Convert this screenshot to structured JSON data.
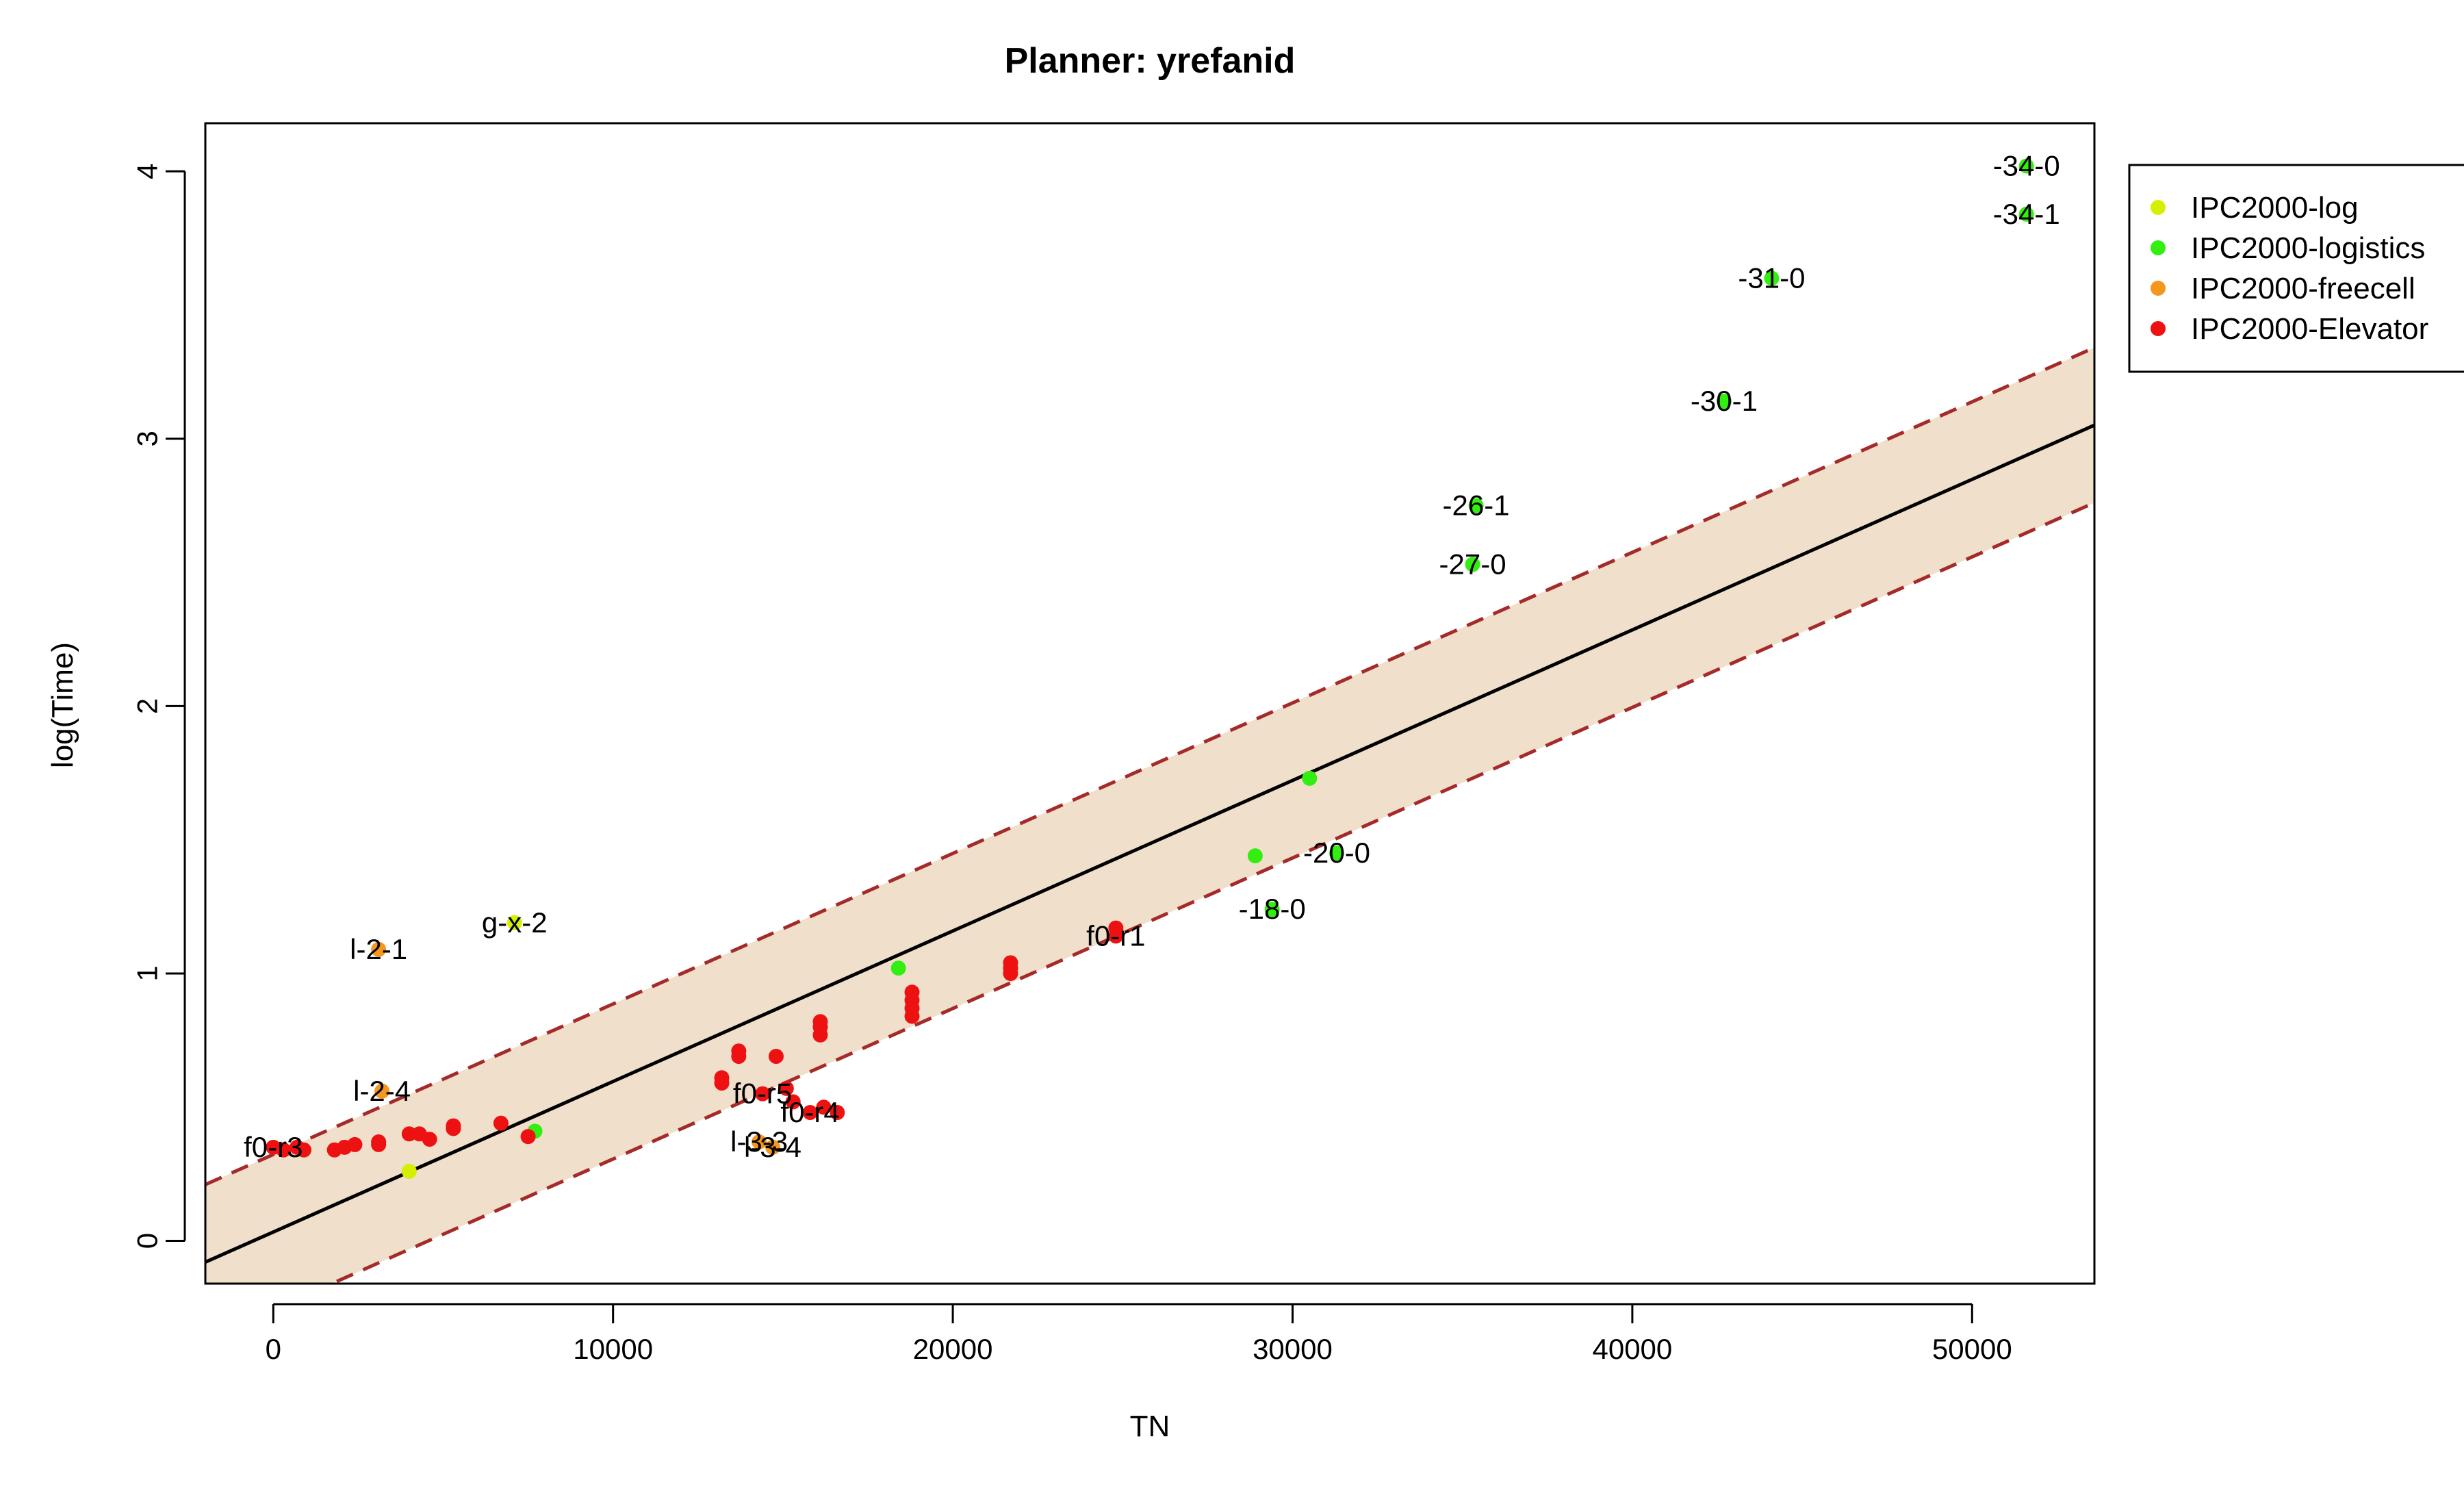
{
  "chart_data": {
    "type": "scatter",
    "title": "Planner: yrefanid",
    "xlabel": "TN",
    "ylabel": "log(Time)",
    "xlim": [
      -2000,
      53600
    ],
    "ylim": [
      -0.16,
      4.18
    ],
    "xticks": [
      0,
      10000,
      20000,
      30000,
      40000,
      50000
    ],
    "yticks": [
      0,
      1,
      2,
      3,
      4
    ],
    "grid": false,
    "legend_position": "top-right-outside",
    "fit": {
      "intercept": 0.033,
      "slope": 5.63e-05,
      "band_offset": 0.29,
      "line_color": "#000000",
      "band_fill": "#f0dfca",
      "band_line_color": "#a52a2a"
    },
    "series": [
      {
        "name": "IPC2000-log",
        "color": "#d4f000",
        "points": [
          {
            "x": 7100,
            "y": 1.19,
            "label": "g-x-2"
          },
          {
            "x": 4000,
            "y": 0.26,
            "label": ""
          }
        ]
      },
      {
        "name": "IPC2000-logistics",
        "color": "#33ee11",
        "points": [
          {
            "x": 51600,
            "y": 4.02,
            "label": "-34-0"
          },
          {
            "x": 51600,
            "y": 3.84,
            "label": "-34-1"
          },
          {
            "x": 44100,
            "y": 3.6,
            "label": "-31-0"
          },
          {
            "x": 42700,
            "y": 3.14,
            "label": "-30-1"
          },
          {
            "x": 35400,
            "y": 2.75,
            "label": "-26-1"
          },
          {
            "x": 35300,
            "y": 2.53,
            "label": "-27-0"
          },
          {
            "x": 30500,
            "y": 1.73,
            "label": ""
          },
          {
            "x": 31300,
            "y": 1.45,
            "label": "-20-0"
          },
          {
            "x": 28900,
            "y": 1.44,
            "label": ""
          },
          {
            "x": 29400,
            "y": 1.24,
            "label": "-18-0"
          },
          {
            "x": 18400,
            "y": 1.02,
            "label": ""
          },
          {
            "x": 7700,
            "y": 0.41,
            "label": ""
          }
        ]
      },
      {
        "name": "IPC2000-freecell",
        "color": "#f5961e",
        "points": [
          {
            "x": 3100,
            "y": 1.09,
            "label": "l-2-1"
          },
          {
            "x": 3200,
            "y": 0.56,
            "label": "l-2-4"
          },
          {
            "x": 14300,
            "y": 0.37,
            "label": "l-3-3"
          },
          {
            "x": 14700,
            "y": 0.35,
            "label": "l-3-4"
          }
        ]
      },
      {
        "name": "IPC2000-Elevator",
        "color": "#ee1111",
        "points": [
          {
            "x": 0,
            "y": 0.35,
            "label": "f0-r3"
          },
          {
            "x": 300,
            "y": 0.34,
            "label": ""
          },
          {
            "x": 700,
            "y": 0.35,
            "label": ""
          },
          {
            "x": 900,
            "y": 0.34,
            "label": ""
          },
          {
            "x": 1800,
            "y": 0.34,
            "label": ""
          },
          {
            "x": 2100,
            "y": 0.35,
            "label": ""
          },
          {
            "x": 2400,
            "y": 0.36,
            "label": ""
          },
          {
            "x": 3100,
            "y": 0.36,
            "label": ""
          },
          {
            "x": 3100,
            "y": 0.37,
            "label": ""
          },
          {
            "x": 4000,
            "y": 0.4,
            "label": ""
          },
          {
            "x": 4300,
            "y": 0.4,
            "label": ""
          },
          {
            "x": 4600,
            "y": 0.38,
            "label": ""
          },
          {
            "x": 5300,
            "y": 0.42,
            "label": ""
          },
          {
            "x": 5300,
            "y": 0.43,
            "label": ""
          },
          {
            "x": 6700,
            "y": 0.44,
            "label": ""
          },
          {
            "x": 7500,
            "y": 0.39,
            "label": ""
          },
          {
            "x": 13200,
            "y": 0.59,
            "label": ""
          },
          {
            "x": 13200,
            "y": 0.61,
            "label": ""
          },
          {
            "x": 13700,
            "y": 0.69,
            "label": ""
          },
          {
            "x": 13700,
            "y": 0.71,
            "label": ""
          },
          {
            "x": 14400,
            "y": 0.55,
            "label": "f0-r5"
          },
          {
            "x": 14800,
            "y": 0.69,
            "label": ""
          },
          {
            "x": 15100,
            "y": 0.57,
            "label": ""
          },
          {
            "x": 15300,
            "y": 0.52,
            "label": ""
          },
          {
            "x": 15800,
            "y": 0.48,
            "label": "f0-r4"
          },
          {
            "x": 16200,
            "y": 0.5,
            "label": ""
          },
          {
            "x": 16600,
            "y": 0.48,
            "label": ""
          },
          {
            "x": 16100,
            "y": 0.77,
            "label": ""
          },
          {
            "x": 16100,
            "y": 0.8,
            "label": ""
          },
          {
            "x": 16100,
            "y": 0.82,
            "label": ""
          },
          {
            "x": 18800,
            "y": 0.84,
            "label": ""
          },
          {
            "x": 18800,
            "y": 0.87,
            "label": ""
          },
          {
            "x": 18800,
            "y": 0.9,
            "label": ""
          },
          {
            "x": 18800,
            "y": 0.93,
            "label": ""
          },
          {
            "x": 21700,
            "y": 1.0,
            "label": ""
          },
          {
            "x": 21700,
            "y": 1.02,
            "label": ""
          },
          {
            "x": 21700,
            "y": 1.04,
            "label": ""
          },
          {
            "x": 24800,
            "y": 1.14,
            "label": "f0-r1"
          },
          {
            "x": 24800,
            "y": 1.17,
            "label": ""
          }
        ]
      }
    ]
  }
}
